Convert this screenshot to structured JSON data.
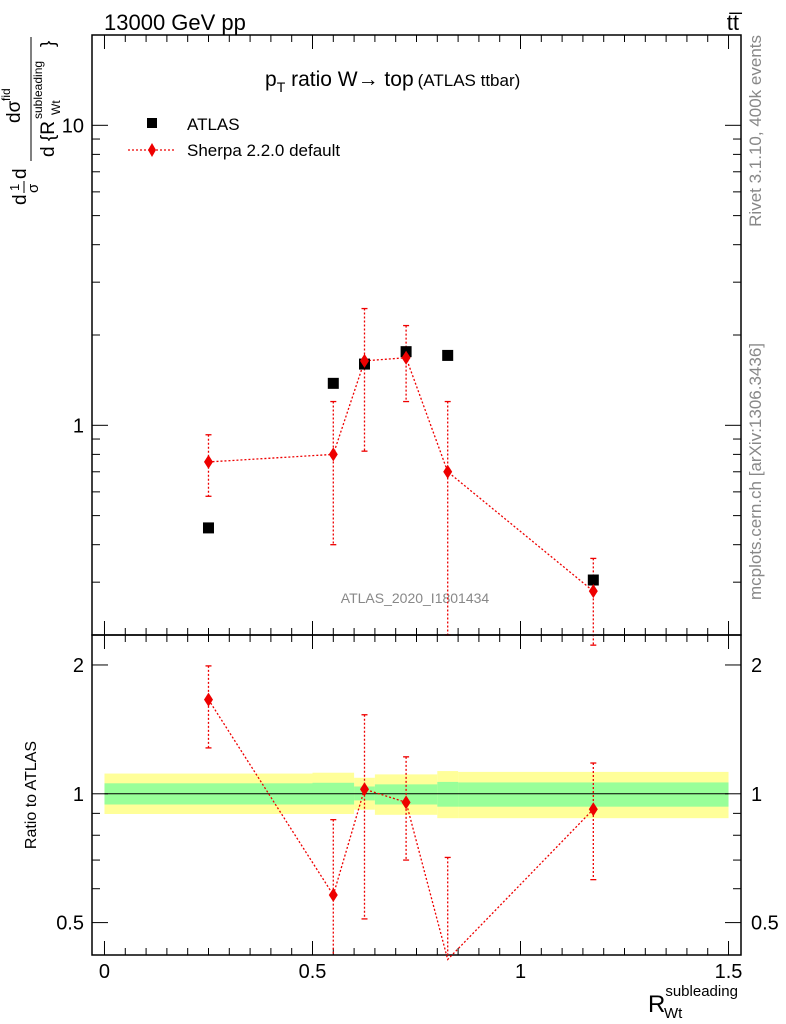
{
  "header": {
    "energy_label": "13000 GeV pp",
    "process_label": "tt̅"
  },
  "side_labels": {
    "rivet": "Rivet 3.1.10,  400k events",
    "mcplots": "mcplots.cern.ch [arXiv:1306.3436]"
  },
  "chart_data": [
    {
      "type": "scatter",
      "title_main": "p",
      "title_sub": "T",
      "title_rest": " ratio W→ top",
      "title_suffix": "(ATLAS ttbar)",
      "ylabel_parts": [
        "d",
        "1",
        "σ",
        "d",
        "dσ",
        "fid",
        "d {R",
        "subleading",
        "Wt",
        "}"
      ],
      "yscale": "log",
      "ylim": [
        0.2,
        20
      ],
      "yticks": [
        {
          "v": 1,
          "label": "1"
        },
        {
          "v": 10,
          "label": "10"
        }
      ],
      "xlim": [
        -0.03,
        1.53
      ],
      "watermark": "ATLAS_2020_I1801434",
      "legend": {
        "data_label": "ATLAS",
        "mc_label": "Sherpa 2.2.0 default"
      },
      "series": [
        {
          "name": "ATLAS",
          "marker": "square",
          "color": "#000000",
          "points": [
            {
              "x": 0.25,
              "y": 0.455
            },
            {
              "x": 0.55,
              "y": 1.38
            },
            {
              "x": 0.625,
              "y": 1.6
            },
            {
              "x": 0.725,
              "y": 1.76
            },
            {
              "x": 0.825,
              "y": 1.71
            },
            {
              "x": 1.175,
              "y": 0.305
            }
          ]
        },
        {
          "name": "Sherpa 2.2.0 default",
          "marker": "diamond",
          "color": "#ee0000",
          "points": [
            {
              "x": 0.25,
              "y": 0.755,
              "lo": 0.58,
              "hi": 0.93
            },
            {
              "x": 0.55,
              "y": 0.8,
              "lo": 0.4,
              "hi": 1.2
            },
            {
              "x": 0.625,
              "y": 1.64,
              "lo": 0.82,
              "hi": 2.45
            },
            {
              "x": 0.725,
              "y": 1.68,
              "lo": 1.2,
              "hi": 2.15
            },
            {
              "x": 0.825,
              "y": 0.7,
              "lo": 0.2,
              "hi": 1.2
            },
            {
              "x": 1.175,
              "y": 0.28,
              "lo": 0.185,
              "hi": 0.36
            }
          ]
        }
      ]
    },
    {
      "type": "scatter",
      "ylabel": "Ratio to ATLAS",
      "yscale": "log",
      "ylim": [
        0.42,
        2.35
      ],
      "yticks": [
        {
          "v": 0.5,
          "label": "0.5"
        },
        {
          "v": 1,
          "label": "1"
        },
        {
          "v": 2,
          "label": "2"
        }
      ],
      "xlim": [
        -0.03,
        1.53
      ],
      "xticks": [
        {
          "v": 0,
          "label": "0"
        },
        {
          "v": 0.5,
          "label": "0.5"
        },
        {
          "v": 1,
          "label": "1"
        },
        {
          "v": 1.5,
          "label": "1.5"
        }
      ],
      "xlabel_main": "R",
      "xlabel_sup": "subleading",
      "xlabel_sub": "Wt",
      "bands": [
        {
          "x0": 0.0,
          "x1": 0.5,
          "in_lo": 0.944,
          "in_hi": 1.058,
          "out_lo": 0.897,
          "out_hi": 1.115
        },
        {
          "x0": 0.5,
          "x1": 0.6,
          "in_lo": 0.944,
          "in_hi": 1.061,
          "out_lo": 0.897,
          "out_hi": 1.12
        },
        {
          "x0": 0.6,
          "x1": 0.65,
          "in_lo": 0.965,
          "in_hi": 1.04,
          "out_lo": 0.918,
          "out_hi": 1.09
        },
        {
          "x0": 0.65,
          "x1": 0.8,
          "in_lo": 0.944,
          "in_hi": 1.052,
          "out_lo": 0.893,
          "out_hi": 1.11
        },
        {
          "x0": 0.8,
          "x1": 0.85,
          "in_lo": 0.933,
          "in_hi": 1.066,
          "out_lo": 0.877,
          "out_hi": 1.13
        },
        {
          "x0": 0.85,
          "x1": 1.5,
          "in_lo": 0.933,
          "in_hi": 1.063,
          "out_lo": 0.877,
          "out_hi": 1.125
        }
      ],
      "series": [
        {
          "name": "Sherpa 2.2.0 default",
          "color": "#ee0000",
          "points": [
            {
              "x": 0.25,
              "y": 1.66,
              "lo": 1.28,
              "hi": 1.99
            },
            {
              "x": 0.55,
              "y": 0.58,
              "lo": 0.29,
              "hi": 0.87
            },
            {
              "x": 0.625,
              "y": 1.025,
              "lo": 0.51,
              "hi": 1.53
            },
            {
              "x": 0.725,
              "y": 0.955,
              "lo": 0.7,
              "hi": 1.22
            },
            {
              "x": 0.825,
              "y": 0.41,
              "lo": 0.117,
              "hi": 0.71
            },
            {
              "x": 1.175,
              "y": 0.92,
              "lo": 0.63,
              "hi": 1.18
            }
          ]
        }
      ]
    }
  ]
}
